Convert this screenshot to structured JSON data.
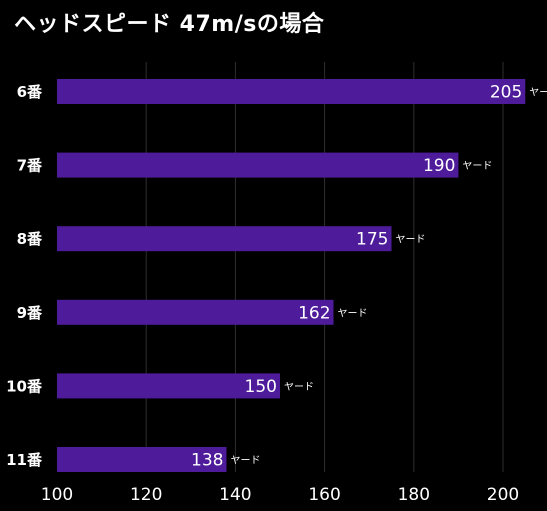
{
  "title": "ヘッドスピード 47m/sの場合",
  "unit_label": "ヤード",
  "colors": {
    "background": "#000000",
    "bar": "#4e1b9b",
    "grid": "#2e2e2e",
    "text": "#ffffff"
  },
  "chart_data": {
    "type": "bar",
    "orientation": "horizontal",
    "title": "ヘッドスピード 47m/sの場合",
    "categories": [
      "6番",
      "7番",
      "8番",
      "9番",
      "10番",
      "11番"
    ],
    "values": [
      205,
      190,
      175,
      162,
      150,
      138
    ],
    "data_labels": [
      "205",
      "190",
      "175",
      "162",
      "150",
      "138"
    ],
    "xlim": [
      100,
      200
    ],
    "x_ticks": [
      "100",
      "120",
      "140",
      "160",
      "180",
      "200"
    ],
    "grid": true,
    "legend": "none"
  }
}
